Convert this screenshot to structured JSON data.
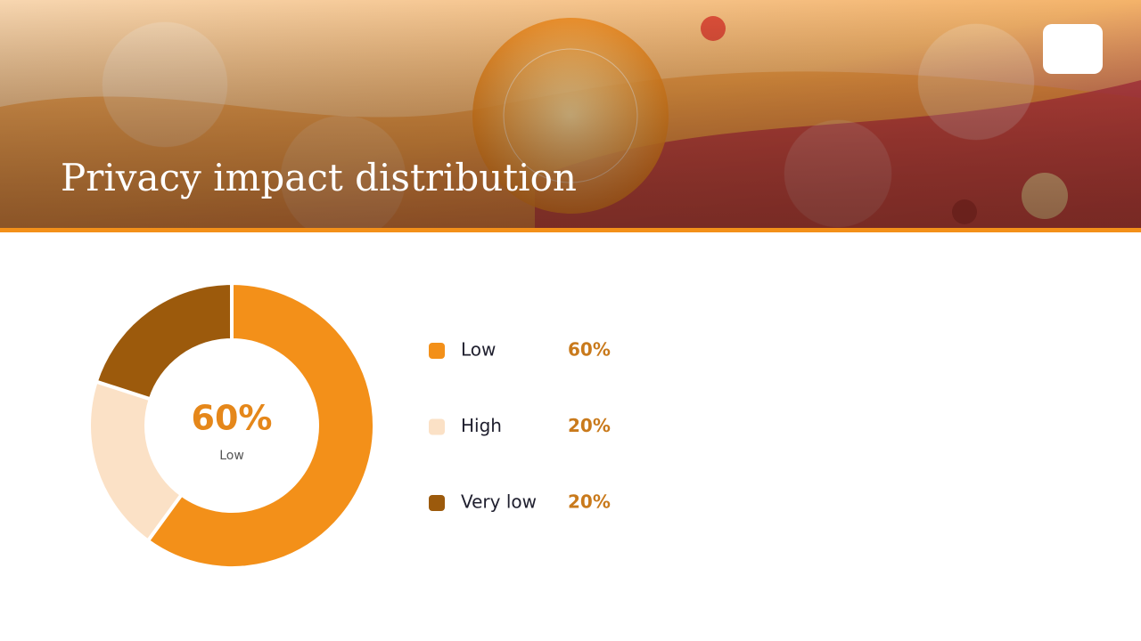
{
  "chart_data": {
    "type": "pie",
    "donut": true,
    "title": "Privacy impact distribution",
    "categories": [
      "Low",
      "High",
      "Very low"
    ],
    "values": [
      60,
      20,
      20
    ],
    "value_labels": [
      "60%",
      "20%",
      "20%"
    ],
    "colors": [
      "#f39019",
      "#fbe1c6",
      "#9c5a0c"
    ]
  }
}
